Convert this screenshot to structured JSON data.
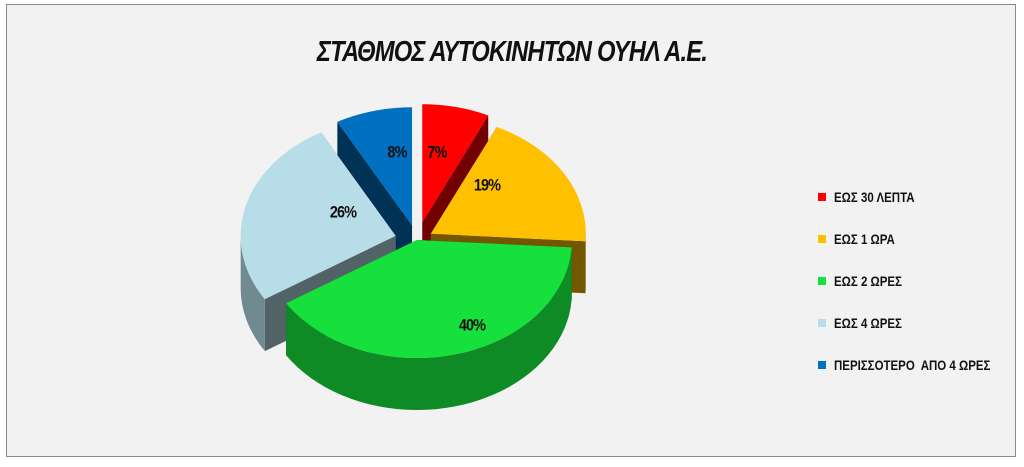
{
  "chart_data": {
    "type": "pie",
    "title": "ΣΤΑΘΜΟΣ ΑΥΤΟΚΙΝΗΤΩΝ ΟΥΗΛ Α.Ε.",
    "slices": [
      {
        "label": "ΕΩΣ 30 ΛΕΠΤΑ",
        "value": 7,
        "value_label": "7%",
        "color": "#ff0000"
      },
      {
        "label": "ΕΩΣ 1 ΩΡΑ",
        "value": 19,
        "value_label": "19%",
        "color": "#ffc000"
      },
      {
        "label": "ΕΩΣ 2 ΩΡΕΣ",
        "value": 40,
        "value_label": "40%",
        "color": "#16e03c"
      },
      {
        "label": "ΕΩΣ 4 ΩΡΕΣ",
        "value": 26,
        "value_label": "26%",
        "color": "#b7dde8"
      },
      {
        "label": "ΠΕΡΙΣΣΟΤΕΡΟ  ΑΠΟ 4 ΩΡΕΣ",
        "value": 8,
        "value_label": "8%",
        "color": "#0070c0"
      }
    ],
    "exploded": true,
    "three_d": true,
    "legend_position": "right"
  }
}
